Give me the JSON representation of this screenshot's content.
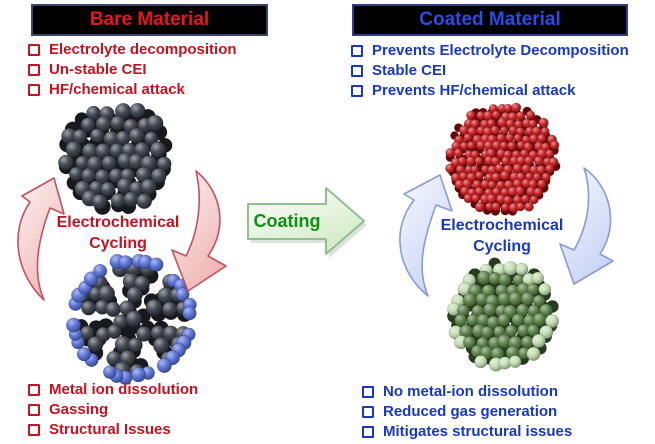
{
  "figure": {
    "bare": {
      "title": "Bare Material",
      "title_color": "#e8141f",
      "text_color": "#c41220",
      "top_issues": [
        "Electrolyte decomposition",
        "Un-stable CEI",
        "HF/chemical attack"
      ],
      "cycle_line1": "Electrochemical",
      "cycle_line2": "Cycling",
      "bottom_issues": [
        "Metal ion dissolution",
        "Gassing",
        "Structural Issues"
      ]
    },
    "coated": {
      "title": "Coated Material",
      "title_color": "#2b4ce4",
      "text_color": "#1838c0",
      "top_issues": [
        "Prevents Electrolyte Decomposition",
        "Stable CEI",
        "Prevents HF/chemical attack"
      ],
      "cycle_line1": "Electrochemical",
      "cycle_line2": "Cycling",
      "bottom_issues": [
        "No metal-ion dissolution",
        "Reduced gas generation",
        "Mitigates structural issues"
      ]
    },
    "coating_arrow": {
      "label": "Coating",
      "text_color": "#0f9015",
      "fill_light": "#fdfffc",
      "fill_dark": "#d3eac8",
      "border": "#8fbe8f"
    },
    "particles": {
      "bare_pristine": {
        "name": "bare cathode particle",
        "sphere_color": "#2d313b"
      },
      "bare_cycled": {
        "name": "cracked particle with metal-ion dissolution",
        "sphere_color": "#2d313b",
        "ion_color": "#4a66d4"
      },
      "coated_pristine": {
        "name": "coated cathode particle",
        "sphere_color": "#c50d10"
      },
      "coated_cycled": {
        "name": "coated particle after cycling",
        "core_color": "#4d7539",
        "shell_color": "#bedcab"
      }
    },
    "cycle_arrows": {
      "bare_fill_light": "#fdf4f4",
      "bare_fill_dark": "#f0b4b4",
      "bare_border": "#c2525e",
      "coated_fill_light": "#f7f9fe",
      "coated_fill_dark": "#c8d4f4",
      "coated_border": "#8b9ad8"
    }
  }
}
